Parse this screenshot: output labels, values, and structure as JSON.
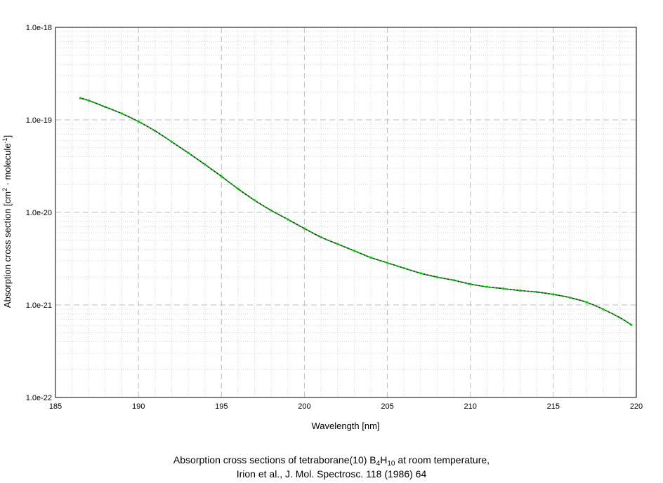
{
  "chart_data": {
    "type": "line",
    "title": "",
    "xlabel": "Wavelength [nm]",
    "ylabel": {
      "prefix": "Absorption cross section [cm",
      "sup1": "2",
      "middle": " · molecule",
      "sup2": "-1",
      "suffix": "]"
    },
    "xlim": [
      185,
      220
    ],
    "ylim": [
      1e-22,
      1e-18
    ],
    "yscale": "log",
    "grid": true,
    "x_ticks": [
      "185",
      "190",
      "195",
      "200",
      "205",
      "210",
      "215",
      "220"
    ],
    "y_ticks": [
      "1.0e-22",
      "1.0e-21",
      "1.0e-20",
      "1.0e-19",
      "1.0e-18"
    ],
    "series": [
      {
        "color": "#00cc00",
        "x": [
          186.5,
          187,
          188,
          189,
          190,
          191,
          192,
          193,
          194,
          195,
          196,
          197,
          198,
          199,
          200,
          201,
          202,
          203,
          204,
          205,
          206,
          207,
          208,
          209,
          210,
          211,
          212,
          213,
          214,
          215,
          216,
          217,
          218,
          219,
          219.7
        ],
        "y": [
          1.72e-19,
          1.62e-19,
          1.38e-19,
          1.17e-19,
          9.6e-20,
          7.6e-20,
          5.8e-20,
          4.4e-20,
          3.3e-20,
          2.45e-20,
          1.8e-20,
          1.35e-20,
          1.05e-20,
          8.4e-21,
          6.7e-21,
          5.4e-21,
          4.55e-21,
          3.85e-21,
          3.25e-21,
          2.85e-21,
          2.5e-21,
          2.2e-21,
          2e-21,
          1.85e-21,
          1.68e-21,
          1.57e-21,
          1.5e-21,
          1.43e-21,
          1.38e-21,
          1.3e-21,
          1.2e-21,
          1.07e-21,
          9e-22,
          7.3e-22,
          6.1e-22
        ]
      }
    ]
  },
  "caption": {
    "line1_before": "Absorption cross sections of tetraborane(10) B",
    "line1_sub1": "4",
    "line1_mid": "H",
    "line1_sub2": "10",
    "line1_after": " at room temperature,",
    "line2": "Irion et al., J. Mol. Spectrosc. 118 (1986) 64"
  }
}
